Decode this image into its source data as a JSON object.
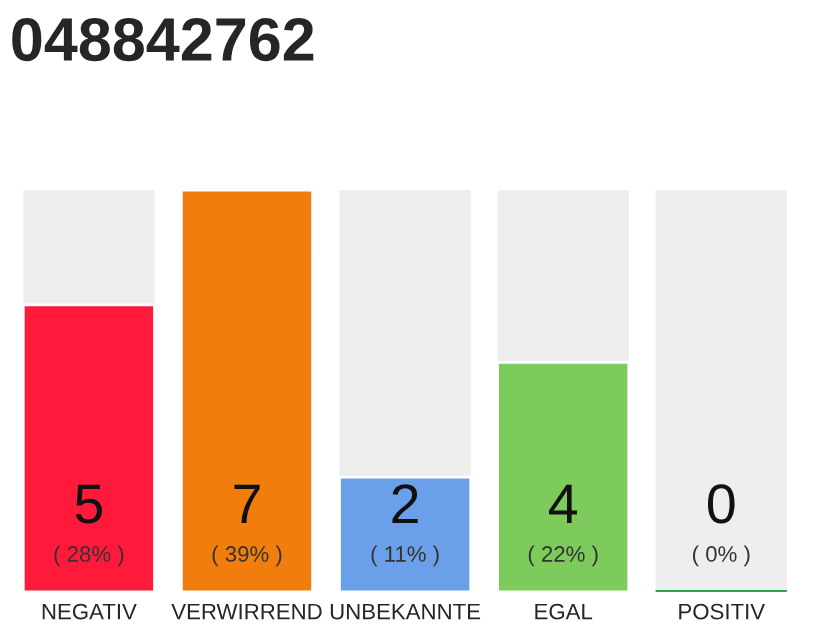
{
  "chart_data": {
    "type": "bar",
    "title": "048842762",
    "categories": [
      "NEGATIV",
      "VERWIRREND",
      "UNBEKANNTE",
      "EGAL",
      "POSITIV"
    ],
    "values": [
      5,
      7,
      2,
      4,
      0
    ],
    "colors": [
      "#ff1a3c",
      "#f07d0c",
      "#6a9fea",
      "#7ccb5c",
      "#2ea84a"
    ],
    "value_labels": [
      "5\n( 28% )",
      "7\n( 39% )",
      "2\n( 11% )",
      "4\n( 22% )",
      "0\n( 0% )"
    ],
    "ylim": [
      0,
      7
    ],
    "tick_labels": "x",
    "grid": false,
    "legend": false
  }
}
